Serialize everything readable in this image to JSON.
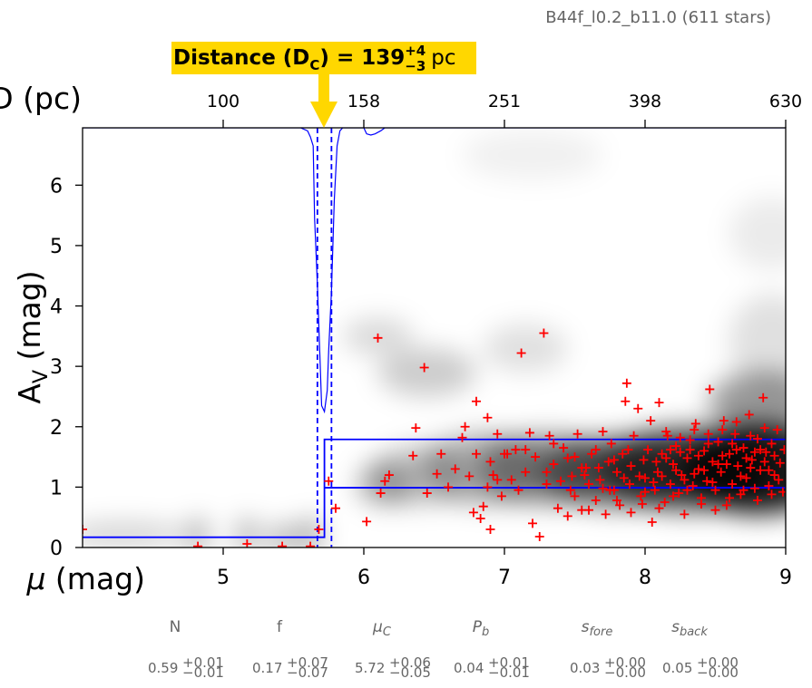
{
  "chart_data": {
    "type": "scatter",
    "title": "B44f_l0.2_b11.0 (611 stars)",
    "xlabel": "μ (mag)",
    "ylabel": "A_V (mag)",
    "top_axis_label": "D (pc)",
    "xlim": [
      4.0,
      9.0
    ],
    "ylim": [
      0.0,
      6.95
    ],
    "x_ticks": [
      "5",
      "6",
      "7",
      "8",
      "9"
    ],
    "x_tick_values": [
      5,
      6,
      7,
      8,
      9
    ],
    "y_ticks": [
      "0",
      "1",
      "2",
      "3",
      "4",
      "5",
      "6"
    ],
    "y_tick_values": [
      0,
      1,
      2,
      3,
      4,
      5,
      6
    ],
    "top_ticks": [
      "100",
      "158",
      "251",
      "398",
      "630"
    ],
    "top_tick_values": [
      5.0,
      6.0,
      7.0,
      8.0,
      9.0
    ],
    "callout": {
      "bold_text": "Distance (D",
      "subscript": "C",
      "bold_text_2": ") = 139",
      "sup": "+4",
      "sub": "−3",
      "unit": "pc",
      "x": 5.72,
      "color": "#FFD700"
    },
    "model": {
      "mu_c": 5.72,
      "fore_level": 0.17,
      "back_low": 0.99,
      "back_high": 1.79,
      "dash_lines": [
        5.67,
        5.77
      ],
      "color": "#0000FF"
    },
    "distance_pdf_histogram": {
      "color": "#0000FF",
      "points": [
        [
          5.55,
          0.0
        ],
        [
          5.6,
          0.05
        ],
        [
          5.62,
          0.15
        ],
        [
          5.64,
          0.3
        ],
        [
          5.65,
          1.5
        ],
        [
          5.67,
          2.6
        ],
        [
          5.7,
          4.6
        ],
        [
          5.72,
          4.7
        ],
        [
          5.74,
          4.35
        ],
        [
          5.75,
          3.7
        ],
        [
          5.77,
          2.7
        ],
        [
          5.79,
          1.2
        ],
        [
          5.81,
          0.3
        ],
        [
          5.83,
          0.05
        ],
        [
          5.85,
          0.0
        ],
        [
          6.0,
          0.0
        ],
        [
          6.02,
          0.1
        ],
        [
          6.05,
          0.12
        ],
        [
          6.08,
          0.1
        ],
        [
          6.12,
          0.05
        ],
        [
          6.15,
          0.0
        ]
      ]
    },
    "stars": {
      "color": "#FF0000",
      "marker": "+",
      "points": [
        [
          4.0,
          0.3
        ],
        [
          4.82,
          0.02
        ],
        [
          5.17,
          0.06
        ],
        [
          5.42,
          0.02
        ],
        [
          5.62,
          0.02
        ],
        [
          5.68,
          0.3
        ],
        [
          5.75,
          1.1
        ],
        [
          5.8,
          0.65
        ],
        [
          6.02,
          0.43
        ],
        [
          6.1,
          3.47
        ],
        [
          6.12,
          0.9
        ],
        [
          6.15,
          1.1
        ],
        [
          6.18,
          1.2
        ],
        [
          6.35,
          1.52
        ],
        [
          6.37,
          1.98
        ],
        [
          6.43,
          2.98
        ],
        [
          6.45,
          0.9
        ],
        [
          6.52,
          1.22
        ],
        [
          6.55,
          1.55
        ],
        [
          6.65,
          1.3
        ],
        [
          6.7,
          1.82
        ],
        [
          6.72,
          2.0
        ],
        [
          6.78,
          0.58
        ],
        [
          6.8,
          1.55
        ],
        [
          6.8,
          2.42
        ],
        [
          6.83,
          0.48
        ],
        [
          6.85,
          0.68
        ],
        [
          6.88,
          1.0
        ],
        [
          6.88,
          2.15
        ],
        [
          6.9,
          0.3
        ],
        [
          6.92,
          1.2
        ],
        [
          6.95,
          1.88
        ],
        [
          6.98,
          0.85
        ],
        [
          7.0,
          1.55
        ],
        [
          7.05,
          1.12
        ],
        [
          7.08,
          1.62
        ],
        [
          7.12,
          3.22
        ],
        [
          7.15,
          1.25
        ],
        [
          7.18,
          1.9
        ],
        [
          7.2,
          0.4
        ],
        [
          7.22,
          1.5
        ],
        [
          7.25,
          0.18
        ],
        [
          7.28,
          3.55
        ],
        [
          7.3,
          1.05
        ],
        [
          7.32,
          1.85
        ],
        [
          7.35,
          1.38
        ],
        [
          7.38,
          0.65
        ],
        [
          7.4,
          1.1
        ],
        [
          7.42,
          1.65
        ],
        [
          7.45,
          0.52
        ],
        [
          7.47,
          0.95
        ],
        [
          7.5,
          1.5
        ],
        [
          7.52,
          1.88
        ],
        [
          7.55,
          0.62
        ],
        [
          7.57,
          1.2
        ],
        [
          7.6,
          1.05
        ],
        [
          7.62,
          1.55
        ],
        [
          7.65,
          0.78
        ],
        [
          7.67,
          1.32
        ],
        [
          7.7,
          1.92
        ],
        [
          7.72,
          0.55
        ],
        [
          7.74,
          1.42
        ],
        [
          7.76,
          1.72
        ],
        [
          7.78,
          0.95
        ],
        [
          7.8,
          1.25
        ],
        [
          7.82,
          0.7
        ],
        [
          7.84,
          1.55
        ],
        [
          7.86,
          2.42
        ],
        [
          7.87,
          2.72
        ],
        [
          7.89,
          1.05
        ],
        [
          7.9,
          1.35
        ],
        [
          7.92,
          1.85
        ],
        [
          7.95,
          2.3
        ],
        [
          7.97,
          0.85
        ],
        [
          7.99,
          1.45
        ],
        [
          8.0,
          1.15
        ],
        [
          8.02,
          1.62
        ],
        [
          8.04,
          2.1
        ],
        [
          8.05,
          0.42
        ],
        [
          8.07,
          0.95
        ],
        [
          8.09,
          1.25
        ],
        [
          8.1,
          2.4
        ],
        [
          8.12,
          1.55
        ],
        [
          8.14,
          0.75
        ],
        [
          8.16,
          1.85
        ],
        [
          8.18,
          1.05
        ],
        [
          8.2,
          1.38
        ],
        [
          8.22,
          1.68
        ],
        [
          8.24,
          0.9
        ],
        [
          8.26,
          1.2
        ],
        [
          8.28,
          0.55
        ],
        [
          8.3,
          1.48
        ],
        [
          8.32,
          1.78
        ],
        [
          8.34,
          1.02
        ],
        [
          8.36,
          2.05
        ],
        [
          8.38,
          1.3
        ],
        [
          8.4,
          0.82
        ],
        [
          8.42,
          1.6
        ],
        [
          8.44,
          1.1
        ],
        [
          8.46,
          2.62
        ],
        [
          8.48,
          1.42
        ],
        [
          8.5,
          0.95
        ],
        [
          8.52,
          1.75
        ],
        [
          8.54,
          1.25
        ],
        [
          8.56,
          2.1
        ],
        [
          8.58,
          0.7
        ],
        [
          8.6,
          1.55
        ],
        [
          8.62,
          1.05
        ],
        [
          8.64,
          1.88
        ],
        [
          8.66,
          1.35
        ],
        [
          8.68,
          0.88
        ],
        [
          8.7,
          1.65
        ],
        [
          8.72,
          1.15
        ],
        [
          8.74,
          2.2
        ],
        [
          8.76,
          1.45
        ],
        [
          8.78,
          0.98
        ],
        [
          8.8,
          1.8
        ],
        [
          8.82,
          1.28
        ],
        [
          8.84,
          2.48
        ],
        [
          8.86,
          1.58
        ],
        [
          8.88,
          1.02
        ],
        [
          8.9,
          1.72
        ],
        [
          8.92,
          1.2
        ],
        [
          8.94,
          1.95
        ],
        [
          8.96,
          1.4
        ],
        [
          8.98,
          0.92
        ],
        [
          8.99,
          1.62
        ],
        [
          7.3,
          1.25
        ],
        [
          7.48,
          1.18
        ],
        [
          7.58,
          1.32
        ],
        [
          7.68,
          1.12
        ],
        [
          7.78,
          1.45
        ],
        [
          7.88,
          1.62
        ],
        [
          7.96,
          1.18
        ],
        [
          8.06,
          1.08
        ],
        [
          8.15,
          1.48
        ],
        [
          8.25,
          1.58
        ],
        [
          8.35,
          1.22
        ],
        [
          8.45,
          1.72
        ],
        [
          8.55,
          1.52
        ],
        [
          8.65,
          1.62
        ],
        [
          8.75,
          1.32
        ],
        [
          8.85,
          1.42
        ],
        [
          8.95,
          1.12
        ],
        [
          8.58,
          1.38
        ],
        [
          8.68,
          1.18
        ],
        [
          8.78,
          1.58
        ],
        [
          8.88,
          1.28
        ],
        [
          8.48,
          1.08
        ],
        [
          8.38,
          1.52
        ],
        [
          8.28,
          1.12
        ],
        [
          8.18,
          1.62
        ],
        [
          8.08,
          1.42
        ],
        [
          7.98,
          0.72
        ],
        [
          7.85,
          1.15
        ],
        [
          7.75,
          0.95
        ],
        [
          7.65,
          1.62
        ],
        [
          7.55,
          1.32
        ],
        [
          7.45,
          1.48
        ],
        [
          8.6,
          0.82
        ],
        [
          8.7,
          0.95
        ],
        [
          8.8,
          0.78
        ],
        [
          8.9,
          0.88
        ],
        [
          8.5,
          0.62
        ],
        [
          8.4,
          0.72
        ],
        [
          8.3,
          0.95
        ],
        [
          8.2,
          0.85
        ],
        [
          8.1,
          0.65
        ],
        [
          8.0,
          0.92
        ],
        [
          7.9,
          0.58
        ],
        [
          7.8,
          0.78
        ],
        [
          7.7,
          0.98
        ],
        [
          7.6,
          0.62
        ],
        [
          7.5,
          0.85
        ],
        [
          8.85,
          1.98
        ],
        [
          8.75,
          1.85
        ],
        [
          8.65,
          2.08
        ],
        [
          8.55,
          1.95
        ],
        [
          8.45,
          1.88
        ],
        [
          8.35,
          1.95
        ],
        [
          8.25,
          1.82
        ],
        [
          8.15,
          1.92
        ],
        [
          8.92,
          1.52
        ],
        [
          8.82,
          1.62
        ],
        [
          8.72,
          1.48
        ],
        [
          8.62,
          1.72
        ],
        [
          8.52,
          1.38
        ],
        [
          8.42,
          1.28
        ],
        [
          8.32,
          1.62
        ],
        [
          8.22,
          1.28
        ],
        [
          8.12,
          1.18
        ],
        [
          6.6,
          1.0
        ],
        [
          6.75,
          1.18
        ],
        [
          6.95,
          1.12
        ],
        [
          7.1,
          0.95
        ],
        [
          7.35,
          1.72
        ],
        [
          7.02,
          1.55
        ],
        [
          6.9,
          1.42
        ],
        [
          7.15,
          1.62
        ]
      ]
    },
    "density_blobs": [
      {
        "x": 8.8,
        "y": 1.3,
        "rx": 0.55,
        "ry": 0.75,
        "a": 0.9
      },
      {
        "x": 8.3,
        "y": 1.3,
        "rx": 0.6,
        "ry": 0.7,
        "a": 0.7
      },
      {
        "x": 7.8,
        "y": 1.25,
        "rx": 0.55,
        "ry": 0.6,
        "a": 0.55
      },
      {
        "x": 7.3,
        "y": 1.3,
        "rx": 0.5,
        "ry": 0.6,
        "a": 0.4
      },
      {
        "x": 6.85,
        "y": 1.3,
        "rx": 0.45,
        "ry": 0.6,
        "a": 0.3
      },
      {
        "x": 6.4,
        "y": 1.2,
        "rx": 0.35,
        "ry": 0.5,
        "a": 0.22
      },
      {
        "x": 6.15,
        "y": 1.05,
        "rx": 0.2,
        "ry": 0.35,
        "a": 0.3
      },
      {
        "x": 6.45,
        "y": 2.9,
        "rx": 0.35,
        "ry": 0.4,
        "a": 0.2
      },
      {
        "x": 6.1,
        "y": 3.5,
        "rx": 0.25,
        "ry": 0.3,
        "a": 0.15
      },
      {
        "x": 7.15,
        "y": 3.3,
        "rx": 0.3,
        "ry": 0.4,
        "a": 0.12
      },
      {
        "x": 8.85,
        "y": 2.4,
        "rx": 0.4,
        "ry": 0.5,
        "a": 0.4
      },
      {
        "x": 8.9,
        "y": 3.4,
        "rx": 0.3,
        "ry": 0.8,
        "a": 0.12
      },
      {
        "x": 8.9,
        "y": 5.2,
        "rx": 0.3,
        "ry": 0.6,
        "a": 0.08
      },
      {
        "x": 7.2,
        "y": 6.5,
        "rx": 0.5,
        "ry": 0.4,
        "a": 0.06
      },
      {
        "x": 4.3,
        "y": 0.22,
        "rx": 0.45,
        "ry": 0.2,
        "a": 0.18
      },
      {
        "x": 4.82,
        "y": 0.2,
        "rx": 0.08,
        "ry": 0.3,
        "a": 0.3
      },
      {
        "x": 5.17,
        "y": 0.2,
        "rx": 0.08,
        "ry": 0.3,
        "a": 0.3
      },
      {
        "x": 5.42,
        "y": 0.15,
        "rx": 0.1,
        "ry": 0.25,
        "a": 0.3
      },
      {
        "x": 5.62,
        "y": 0.2,
        "rx": 0.08,
        "ry": 0.3,
        "a": 0.35
      }
    ]
  },
  "params": [
    {
      "name": "N",
      "value": "0.59",
      "plus": "+0.01",
      "minus": "−0.01"
    },
    {
      "name": "f",
      "value": "0.17",
      "plus": "+0.07",
      "minus": "−0.07"
    },
    {
      "name": "μ",
      "sub": "C",
      "value": "5.72",
      "plus": "+0.06",
      "minus": "−0.05"
    },
    {
      "name": "P",
      "sub": "b",
      "value": "0.04",
      "plus": "+0.01",
      "minus": "−0.01"
    },
    {
      "name": "s",
      "sub": "fore",
      "value": "0.03",
      "plus": "+0.00",
      "minus": "−0.00"
    },
    {
      "name": "s",
      "sub": "back",
      "value": "0.05",
      "plus": "+0.00",
      "minus": "−0.00"
    }
  ]
}
